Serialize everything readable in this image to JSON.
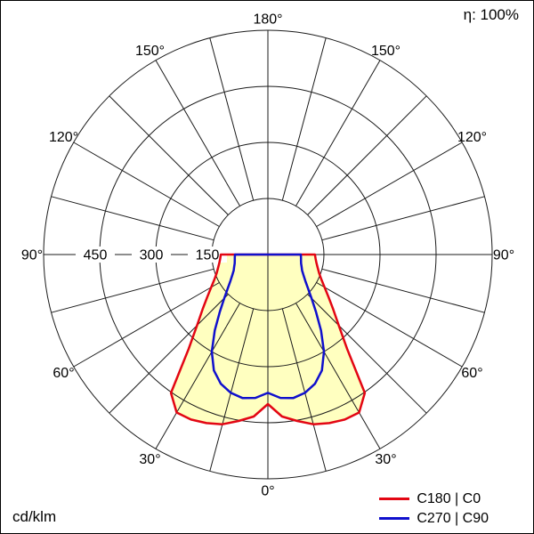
{
  "labels": {
    "efficiency": "η: 100%",
    "unit": "cd/klm"
  },
  "chart_data": {
    "type": "polar_line",
    "description": "Luminous intensity distribution polar curve",
    "unit": "cd/klm",
    "efficiency": "η: 100%",
    "gamma_step_deg": 5,
    "gamma_range_deg": [
      0,
      90
    ],
    "radial_ticks": [
      150,
      300,
      450
    ],
    "grid_circles": [
      150,
      300,
      450,
      600
    ],
    "radial_max": 600,
    "spoke_step_deg": 15,
    "angle_labels_deg": [
      0,
      30,
      60,
      90,
      120,
      150,
      180
    ],
    "angle_label_suffix": "°",
    "series": [
      {
        "name": "C180 | C0",
        "color": "#e30613",
        "fill": "#ffffc0",
        "values": [
          400,
          435,
          452,
          470,
          480,
          487,
          488,
          452,
          330,
          268,
          228,
          198,
          175,
          158,
          146,
          138,
          132,
          128,
          126
        ]
      },
      {
        "name": "C270 | C90",
        "color": "#1010cd",
        "fill": null,
        "values": [
          370,
          385,
          390,
          383,
          368,
          342,
          300,
          248,
          200,
          165,
          140,
          122,
          110,
          101,
          96,
          92,
          90,
          89,
          88
        ]
      }
    ]
  }
}
